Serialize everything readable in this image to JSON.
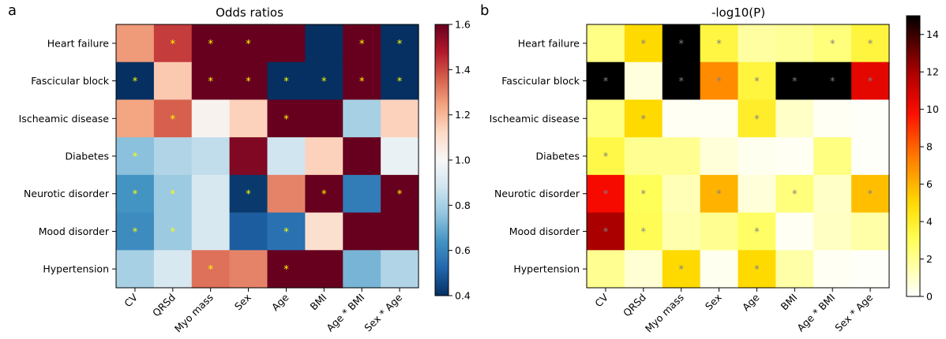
{
  "chart_data": [
    {
      "type": "heatmap",
      "panel_label": "a",
      "title": "Odds ratios",
      "rows": [
        "Heart failure",
        "Fascicular block",
        "Ischeamic disease",
        "Diabetes",
        "Neurotic disorder",
        "Mood disorder",
        "Hypertension"
      ],
      "columns": [
        "CV",
        "QRSd",
        "Myo mass",
        "Sex",
        "Age",
        "BMI",
        "Age * BMI",
        "Sex * Age"
      ],
      "values": [
        [
          1.26,
          1.42,
          1.6,
          1.6,
          1.6,
          0.4,
          1.6,
          0.4
        ],
        [
          0.4,
          1.16,
          1.6,
          1.6,
          0.4,
          0.4,
          1.6,
          0.4
        ],
        [
          1.24,
          1.36,
          1.02,
          1.14,
          1.6,
          1.6,
          0.8,
          1.14
        ],
        [
          0.75,
          0.82,
          0.85,
          1.56,
          0.88,
          1.14,
          1.6,
          0.96
        ],
        [
          0.64,
          0.78,
          0.9,
          0.42,
          1.3,
          1.6,
          0.58,
          1.6
        ],
        [
          0.62,
          0.78,
          0.9,
          0.5,
          0.55,
          1.1,
          1.6,
          1.6
        ],
        [
          0.8,
          0.9,
          1.33,
          1.3,
          1.6,
          1.6,
          0.72,
          0.82
        ]
      ],
      "significant": [
        [
          0,
          1,
          1,
          1,
          0,
          0,
          1,
          1
        ],
        [
          1,
          0,
          1,
          1,
          1,
          1,
          1,
          1
        ],
        [
          0,
          1,
          0,
          0,
          1,
          0,
          0,
          0
        ],
        [
          1,
          0,
          0,
          0,
          0,
          0,
          0,
          0
        ],
        [
          1,
          1,
          0,
          1,
          0,
          1,
          0,
          1
        ],
        [
          1,
          1,
          0,
          0,
          1,
          0,
          0,
          0
        ],
        [
          0,
          0,
          1,
          0,
          1,
          0,
          0,
          0
        ]
      ],
      "marker": "*",
      "marker_color": "#ffff00",
      "colormap": "RdBu_r",
      "colorbar_range": [
        0.4,
        1.6
      ],
      "colorbar_ticks": [
        "0.4",
        "0.6",
        "0.8",
        "1.0",
        "1.2",
        "1.4",
        "1.6"
      ]
    },
    {
      "type": "heatmap",
      "panel_label": "b",
      "title": "-log10(P)",
      "rows": [
        "Heart failure",
        "Fascicular block",
        "Ischeamic disease",
        "Diabetes",
        "Neurotic disorder",
        "Mood disorder",
        "Hypertension"
      ],
      "columns": [
        "CV",
        "QRSd",
        "Myo mass",
        "Sex",
        "Age",
        "BMI",
        "Age * BMI",
        "Sex * Age"
      ],
      "values": [
        [
          2.2,
          5.0,
          15.0,
          3.5,
          1.7,
          1.9,
          2.4,
          3.6
        ],
        [
          15.0,
          0.6,
          15.0,
          7.0,
          3.6,
          15.0,
          15.0,
          10.5
        ],
        [
          2.2,
          5.0,
          0.2,
          0.2,
          4.0,
          1.0,
          0.2,
          0.1
        ],
        [
          3.4,
          2.0,
          2.0,
          0.7,
          0.3,
          0.2,
          2.3,
          0.1
        ],
        [
          10.0,
          3.0,
          1.3,
          6.0,
          0.7,
          2.4,
          1.0,
          5.7
        ],
        [
          12.0,
          3.1,
          1.5,
          2.0,
          2.8,
          0.2,
          1.1,
          1.6
        ],
        [
          2.0,
          0.8,
          5.0,
          0.3,
          5.0,
          1.6,
          0.2,
          0.1
        ]
      ],
      "significant": [
        [
          0,
          1,
          1,
          1,
          0,
          0,
          1,
          1
        ],
        [
          1,
          0,
          1,
          1,
          1,
          1,
          1,
          1
        ],
        [
          0,
          1,
          0,
          0,
          1,
          0,
          0,
          0
        ],
        [
          1,
          0,
          0,
          0,
          0,
          0,
          0,
          0
        ],
        [
          1,
          1,
          0,
          1,
          0,
          1,
          0,
          1
        ],
        [
          1,
          1,
          0,
          0,
          1,
          0,
          0,
          0
        ],
        [
          0,
          0,
          1,
          0,
          1,
          0,
          0,
          0
        ]
      ],
      "marker": "*",
      "marker_color": "#7f7f7f",
      "colormap": "hot_r",
      "colorbar_range": [
        0,
        15
      ],
      "colorbar_ticks": [
        "0",
        "2",
        "4",
        "6",
        "8",
        "10",
        "12",
        "14"
      ]
    }
  ]
}
